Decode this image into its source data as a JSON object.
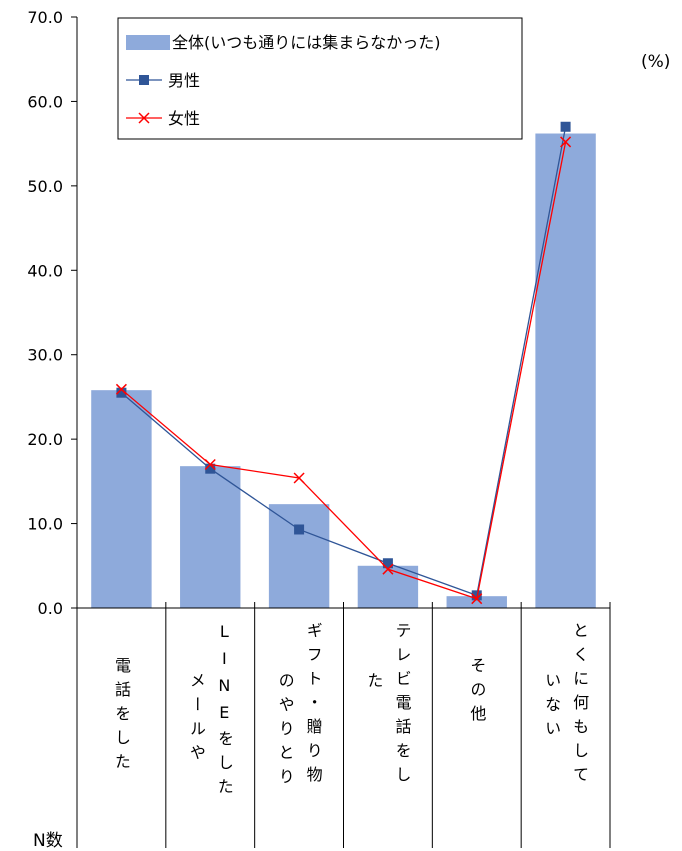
{
  "unit_label": "(%)",
  "n_label": "N数",
  "chart_data": {
    "type": "bar",
    "title": "",
    "xlabel": "",
    "ylabel": "",
    "ylim": [
      0,
      70
    ],
    "yticks": [
      "0.0",
      "10.0",
      "20.0",
      "30.0",
      "40.0",
      "50.0",
      "60.0",
      "70.0"
    ],
    "legend_position": "top-left",
    "categories": [
      {
        "label": "電話をした",
        "columns": [
          "電話をした"
        ]
      },
      {
        "label": "LINEをしたメールや",
        "columns": [
          "LINEをした",
          "メールや"
        ]
      },
      {
        "label": "ギフト・贈り物のやりとり",
        "columns": [
          "ギフト・贈り物",
          "のやりとり"
        ]
      },
      {
        "label": "テレビ電話をした",
        "columns": [
          "テレビ電話をし",
          "た"
        ]
      },
      {
        "label": "その他",
        "columns": [
          "その他"
        ]
      },
      {
        "label": "とくに何もしていない",
        "columns": [
          "とくに何もして",
          "いない"
        ]
      }
    ],
    "series": [
      {
        "name": "全体(いつも通りには集まらなかった)",
        "kind": "bar",
        "color": "#8eaadb",
        "values": [
          25.8,
          16.8,
          12.3,
          5.0,
          1.4,
          56.2
        ]
      },
      {
        "name": "男性",
        "kind": "line",
        "marker": "square",
        "color": "#2f5597",
        "values": [
          25.5,
          16.5,
          9.3,
          5.3,
          1.5,
          57.0
        ]
      },
      {
        "name": "女性",
        "kind": "line",
        "marker": "x",
        "color": "#ff0000",
        "values": [
          25.9,
          17.0,
          15.4,
          4.6,
          1.1,
          55.2
        ]
      }
    ]
  }
}
